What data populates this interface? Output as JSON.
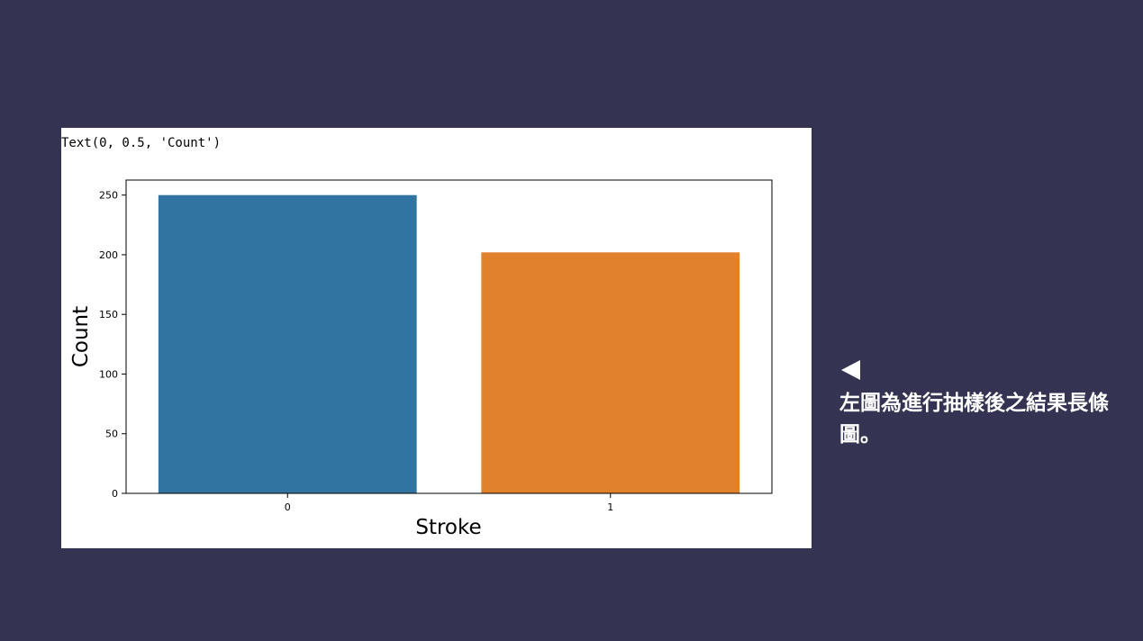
{
  "output_text": "Text(0, 0.5, 'Count')",
  "note": {
    "icon": "left-triangle-icon",
    "text": "左圖為進行抽樣後之結果長條圖。"
  },
  "colors": {
    "background": "#343452",
    "bar_0": "#3274a1",
    "bar_1": "#e1812c"
  },
  "chart_data": {
    "type": "bar",
    "categories": [
      "0",
      "1"
    ],
    "values": [
      250,
      202
    ],
    "xlabel": "Stroke",
    "ylabel": "Count",
    "ylim": [
      0,
      262.6
    ],
    "yticks": [
      0,
      50,
      100,
      150,
      200,
      250
    ],
    "grid": false
  }
}
